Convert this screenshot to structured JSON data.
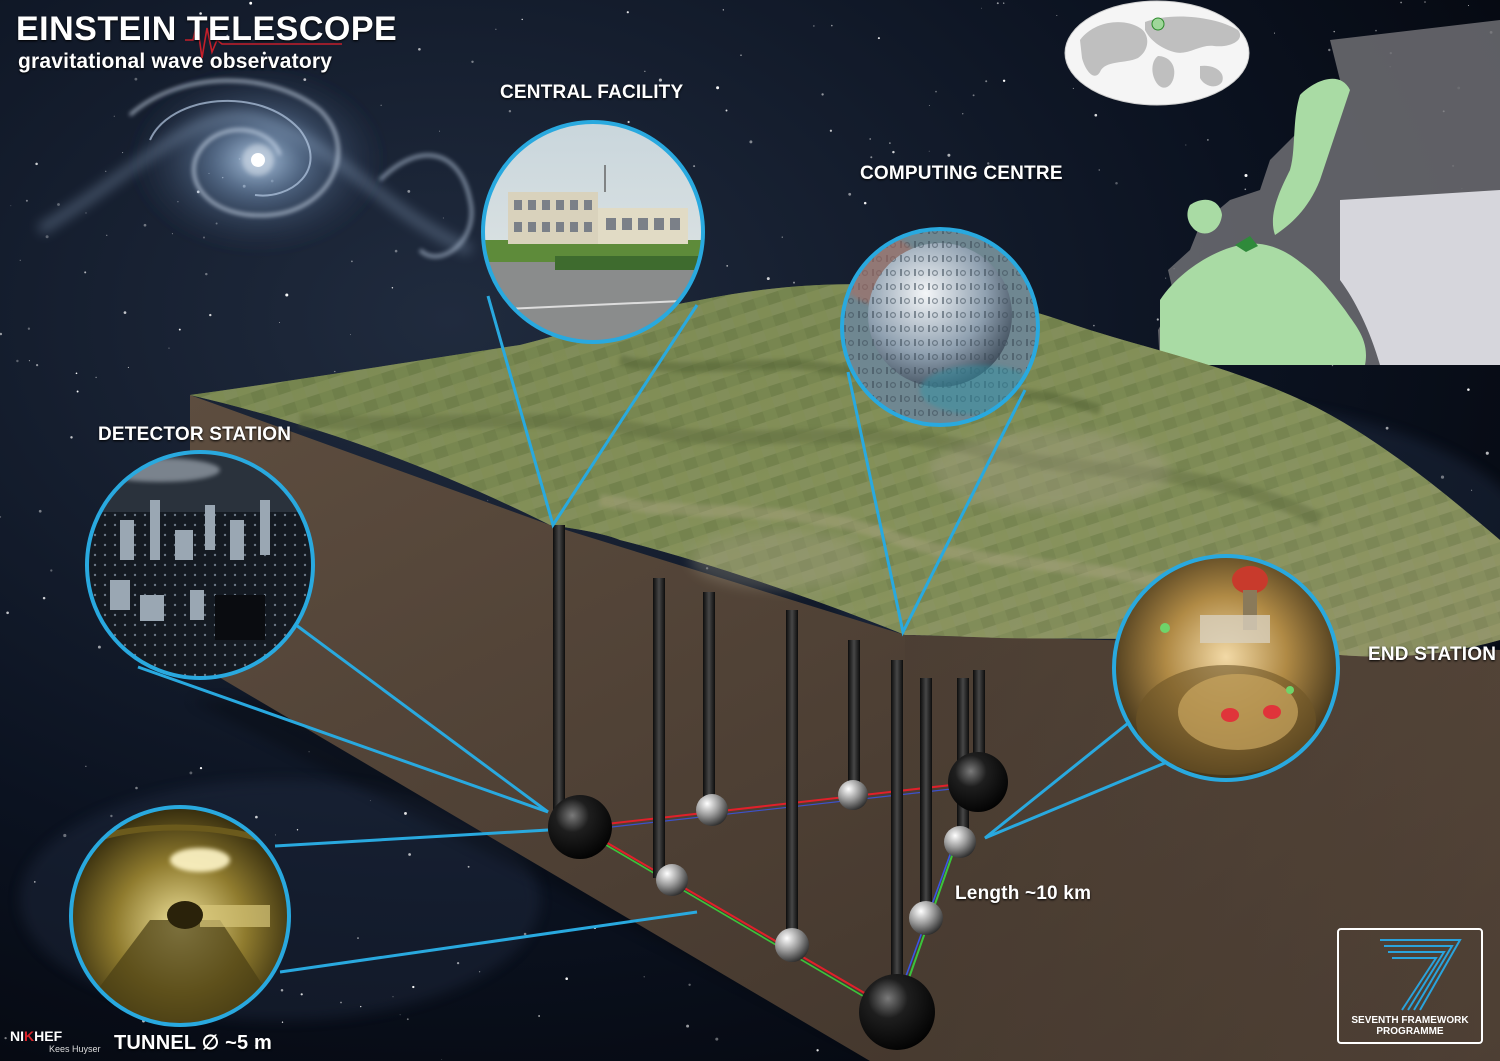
{
  "title": {
    "main": "EINSTEIN TELESCOPE",
    "subtitle": "gravitational wave observatory"
  },
  "labels": {
    "central_facility": "CENTRAL FACILITY",
    "computing_centre": "COMPUTING CENTRE",
    "detector_station": "DETECTOR STATION",
    "end_station": "END STATION",
    "length": "Length ~10 km",
    "tunnel": "TUNNEL ∅ ~5 m"
  },
  "logos": {
    "nikhef_prefix": "NI",
    "nikhef_mark": "K",
    "nikhef_suffix": "HEF",
    "credit": "Kees Huyser",
    "fp7_line1": "SEVENTH FRAMEWORK",
    "fp7_line2": "PROGRAMME"
  },
  "colors": {
    "callout": "#29a9df",
    "beam_red": "#e0202a",
    "beam_green": "#3bc43b",
    "beam_blue": "#3a55e6",
    "europe_highlight": "#a9dba4",
    "ground": "#4e4034"
  }
}
